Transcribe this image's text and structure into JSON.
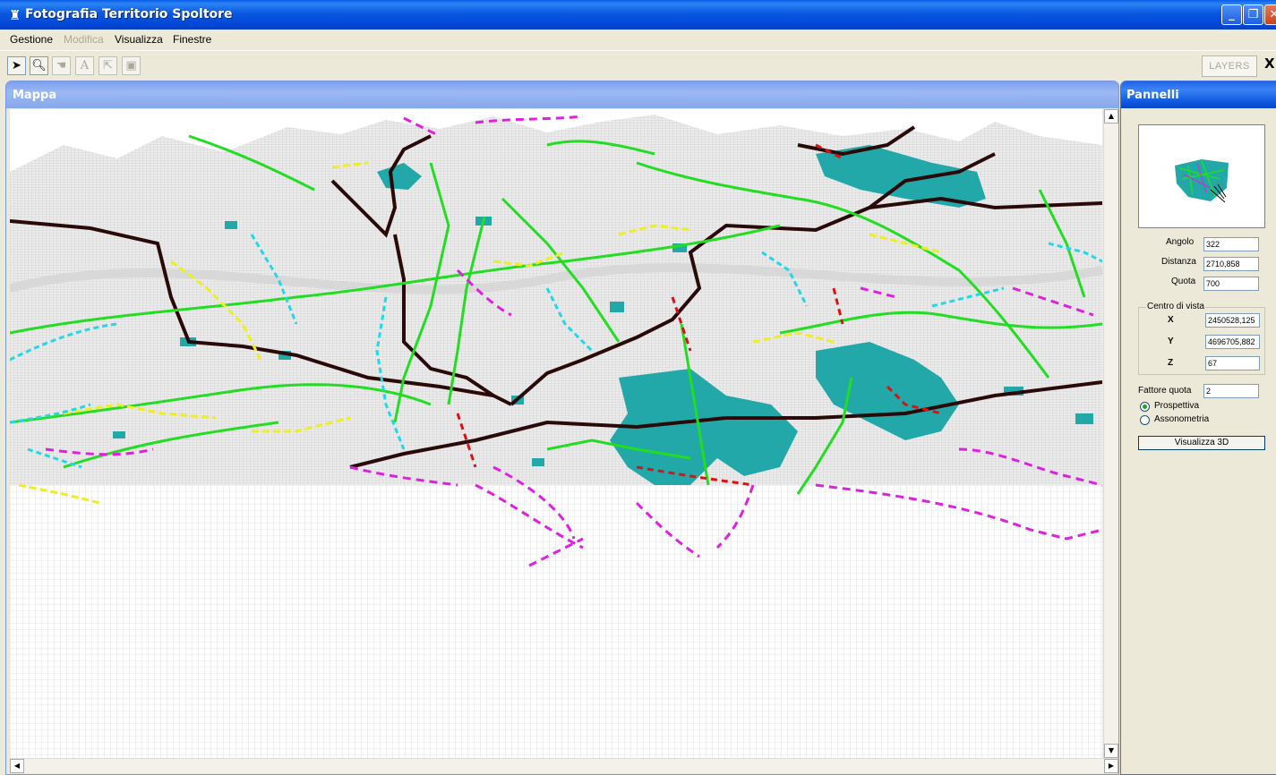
{
  "window": {
    "title": "Fotografia Territorio Spoltore",
    "icon": "coat-of-arms-icon",
    "controls": [
      "minimize-icon",
      "restore-icon",
      "close-icon"
    ]
  },
  "menu": {
    "items": [
      {
        "label": "Gestione",
        "enabled": true
      },
      {
        "label": "Modifica",
        "enabled": false
      },
      {
        "label": "Visualizza",
        "enabled": true
      },
      {
        "label": "Finestre",
        "enabled": true
      }
    ]
  },
  "toolbar": {
    "tools": [
      {
        "icon": "pointer-arrow-icon",
        "enabled": true
      },
      {
        "icon": "zoom-magnifier-icon",
        "enabled": true
      },
      {
        "icon": "pan-hand-icon",
        "enabled": false
      },
      {
        "icon": "text-icon",
        "enabled": false
      },
      {
        "icon": "select-feature-icon",
        "enabled": false
      },
      {
        "icon": "save-disk-icon",
        "enabled": false
      }
    ],
    "layers_label": "LAYERS",
    "close_label": "X"
  },
  "map": {
    "title": "Mappa",
    "view": "3d-terrain-wireframe",
    "colors": {
      "terrain_grid": "#cfcfcf",
      "road_main": "#2a0a08",
      "road_green": "#22dd22",
      "road_yellow": "#eeee22",
      "road_cyan": "#22d8e8",
      "road_magenta": "#e020e0",
      "road_red": "#dd1111",
      "urban_area": "#22a8a8"
    }
  },
  "panel": {
    "title": "Pannelli",
    "angolo_label": "Angolo",
    "angolo_value": "322",
    "distanza_label": "Distanza",
    "distanza_value": "2710,858",
    "quota_label": "Quota",
    "quota_value": "700",
    "centro_label": "Centro di vista",
    "x_label": "X",
    "x_value": "2450528,125",
    "y_label": "Y",
    "y_value": "4696705,882",
    "z_label": "Z",
    "z_value": "67",
    "fattore_label": "Fattore quota",
    "fattore_value": "2",
    "projection_options": [
      {
        "label": "Prospettiva",
        "selected": true
      },
      {
        "label": "Assonometria",
        "selected": false
      }
    ],
    "visualizza_button": "Visualizza 3D"
  }
}
